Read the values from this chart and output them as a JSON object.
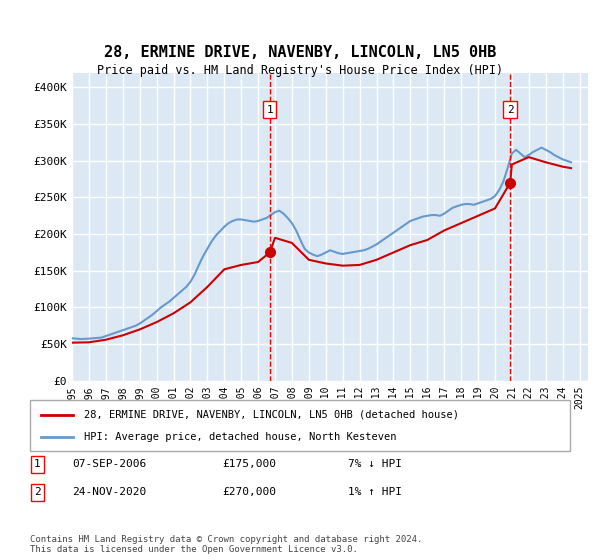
{
  "title": "28, ERMINE DRIVE, NAVENBY, LINCOLN, LN5 0HB",
  "subtitle": "Price paid vs. HM Land Registry's House Price Index (HPI)",
  "xlabel": "",
  "ylabel": "",
  "ylim": [
    0,
    420000
  ],
  "yticks": [
    0,
    50000,
    100000,
    150000,
    200000,
    250000,
    300000,
    350000,
    400000
  ],
  "ytick_labels": [
    "£0",
    "£50K",
    "£100K",
    "£150K",
    "£200K",
    "£250K",
    "£300K",
    "£350K",
    "£400K"
  ],
  "xlim_start": 1995.0,
  "xlim_end": 2025.5,
  "background_color": "#dce9f5",
  "plot_bg_color": "#dce9f5",
  "grid_color": "#ffffff",
  "red_line_color": "#cc0000",
  "blue_line_color": "#6699cc",
  "marker1_x": 2006.69,
  "marker1_y": 175000,
  "marker2_x": 2020.9,
  "marker2_y": 270000,
  "legend_line1": "28, ERMINE DRIVE, NAVENBY, LINCOLN, LN5 0HB (detached house)",
  "legend_line2": "HPI: Average price, detached house, North Kesteven",
  "table_row1_num": "1",
  "table_row1_date": "07-SEP-2006",
  "table_row1_price": "£175,000",
  "table_row1_hpi": "7% ↓ HPI",
  "table_row2_num": "2",
  "table_row2_date": "24-NOV-2020",
  "table_row2_price": "£270,000",
  "table_row2_hpi": "1% ↑ HPI",
  "footnote": "Contains HM Land Registry data © Crown copyright and database right 2024.\nThis data is licensed under the Open Government Licence v3.0.",
  "hpi_years": [
    1995.0,
    1995.25,
    1995.5,
    1995.75,
    1996.0,
    1996.25,
    1996.5,
    1996.75,
    1997.0,
    1997.25,
    1997.5,
    1997.75,
    1998.0,
    1998.25,
    1998.5,
    1998.75,
    1999.0,
    1999.25,
    1999.5,
    1999.75,
    2000.0,
    2000.25,
    2000.5,
    2000.75,
    2001.0,
    2001.25,
    2001.5,
    2001.75,
    2002.0,
    2002.25,
    2002.5,
    2002.75,
    2003.0,
    2003.25,
    2003.5,
    2003.75,
    2004.0,
    2004.25,
    2004.5,
    2004.75,
    2005.0,
    2005.25,
    2005.5,
    2005.75,
    2006.0,
    2006.25,
    2006.5,
    2006.75,
    2007.0,
    2007.25,
    2007.5,
    2007.75,
    2008.0,
    2008.25,
    2008.5,
    2008.75,
    2009.0,
    2009.25,
    2009.5,
    2009.75,
    2010.0,
    2010.25,
    2010.5,
    2010.75,
    2011.0,
    2011.25,
    2011.5,
    2011.75,
    2012.0,
    2012.25,
    2012.5,
    2012.75,
    2013.0,
    2013.25,
    2013.5,
    2013.75,
    2014.0,
    2014.25,
    2014.5,
    2014.75,
    2015.0,
    2015.25,
    2015.5,
    2015.75,
    2016.0,
    2016.25,
    2016.5,
    2016.75,
    2017.0,
    2017.25,
    2017.5,
    2017.75,
    2018.0,
    2018.25,
    2018.5,
    2018.75,
    2019.0,
    2019.25,
    2019.5,
    2019.75,
    2020.0,
    2020.25,
    2020.5,
    2020.75,
    2021.0,
    2021.25,
    2021.5,
    2021.75,
    2022.0,
    2022.25,
    2022.5,
    2022.75,
    2023.0,
    2023.25,
    2023.5,
    2023.75,
    2024.0,
    2024.25,
    2024.5
  ],
  "hpi_values": [
    58000,
    57500,
    57000,
    57200,
    57500,
    58000,
    58500,
    59000,
    61000,
    63000,
    65000,
    67000,
    69000,
    71000,
    73000,
    75000,
    78000,
    82000,
    86000,
    90000,
    95000,
    100000,
    104000,
    108000,
    113000,
    118000,
    123000,
    128000,
    135000,
    145000,
    158000,
    170000,
    180000,
    190000,
    198000,
    204000,
    210000,
    215000,
    218000,
    220000,
    220000,
    219000,
    218000,
    217000,
    218000,
    220000,
    222000,
    226000,
    230000,
    232000,
    228000,
    222000,
    215000,
    205000,
    192000,
    180000,
    175000,
    172000,
    170000,
    172000,
    175000,
    178000,
    176000,
    174000,
    173000,
    174000,
    175000,
    176000,
    177000,
    178000,
    180000,
    183000,
    186000,
    190000,
    194000,
    198000,
    202000,
    206000,
    210000,
    214000,
    218000,
    220000,
    222000,
    224000,
    225000,
    226000,
    226000,
    225000,
    228000,
    232000,
    236000,
    238000,
    240000,
    241000,
    241000,
    240000,
    242000,
    244000,
    246000,
    248000,
    252000,
    260000,
    272000,
    290000,
    310000,
    315000,
    310000,
    305000,
    308000,
    312000,
    315000,
    318000,
    315000,
    312000,
    308000,
    305000,
    302000,
    300000,
    298000
  ],
  "red_years": [
    1995.0,
    1996.0,
    1997.0,
    1998.0,
    1999.0,
    2000.0,
    2001.0,
    2002.0,
    2003.0,
    2004.0,
    2005.0,
    2006.0,
    2006.69,
    2007.0,
    2008.0,
    2009.0,
    2010.0,
    2011.0,
    2012.0,
    2013.0,
    2014.0,
    2015.0,
    2016.0,
    2017.0,
    2018.0,
    2019.0,
    2020.0,
    2020.9,
    2021.0,
    2022.0,
    2023.0,
    2024.0,
    2024.5
  ],
  "red_values": [
    52000,
    52500,
    56000,
    62000,
    70000,
    80000,
    92000,
    107000,
    128000,
    152000,
    158000,
    162000,
    175000,
    195000,
    188000,
    165000,
    160000,
    157000,
    158000,
    165000,
    175000,
    185000,
    192000,
    205000,
    215000,
    225000,
    235000,
    270000,
    295000,
    305000,
    298000,
    292000,
    290000
  ]
}
